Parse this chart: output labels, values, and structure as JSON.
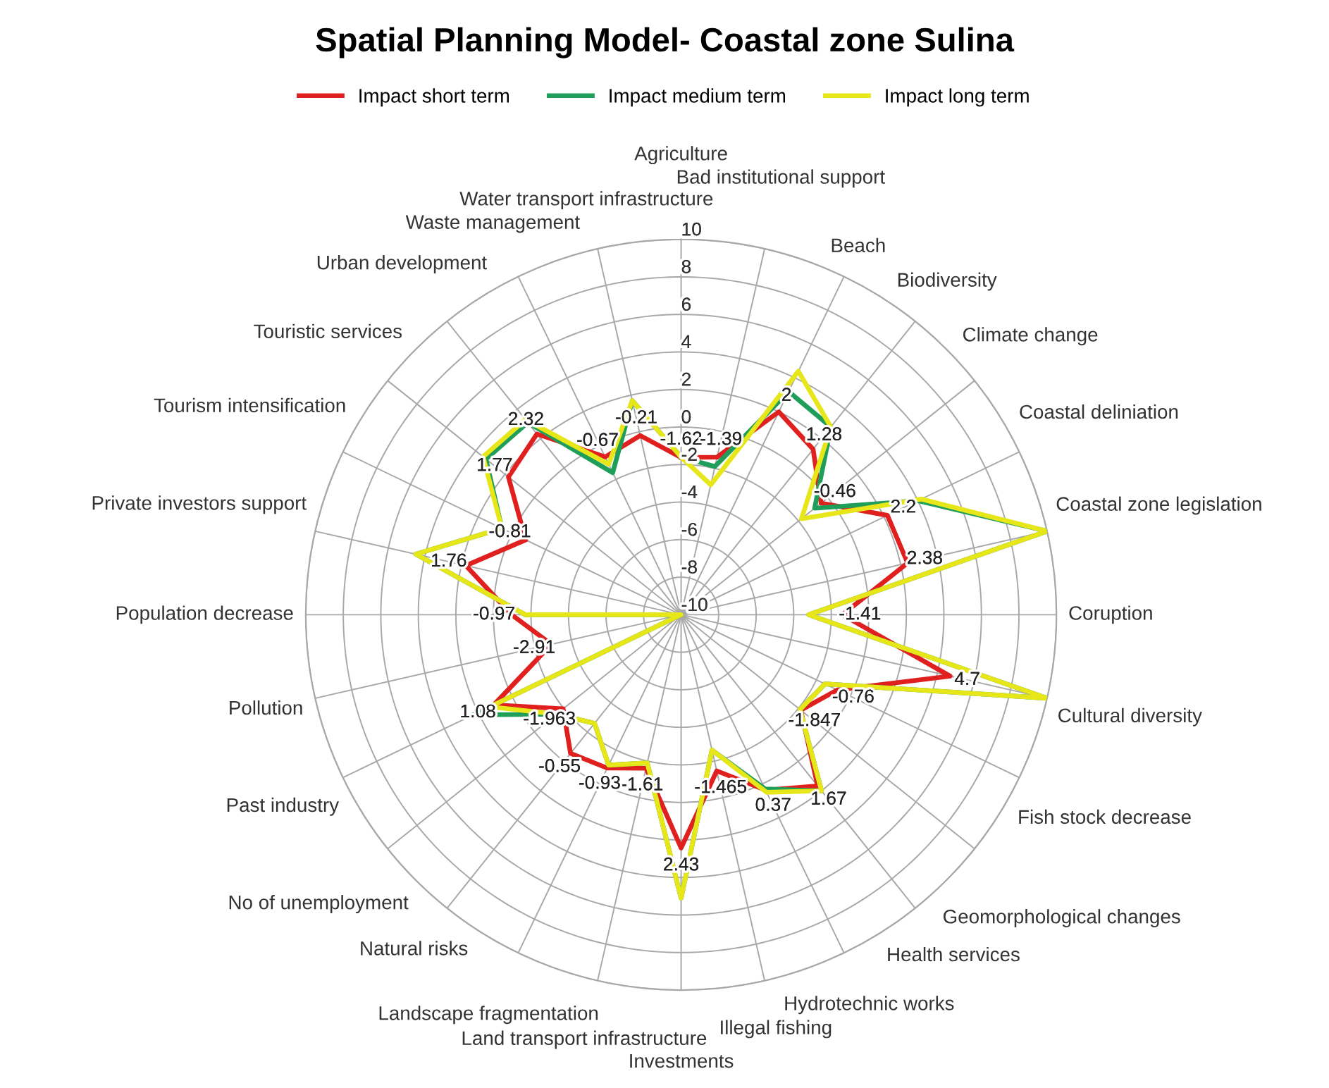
{
  "chart_data": {
    "type": "radar",
    "title": "Spatial Planning Model- Coastal zone Sulina",
    "categories": [
      "Agriculture",
      "Bad institutional support",
      "Beach",
      "Biodiversity",
      "Climate change",
      "Coastal deliniation",
      "Coastal zone legislation",
      "Coruption",
      "Cultural diversity",
      "Fish stock decrease",
      "Geomorphological changes",
      "Health services",
      "Hydrotechnic works",
      "Illegal fishing",
      "Investments",
      "Land transport infrastructure",
      "Landscape fragmentation",
      "Natural risks",
      "No of unemployment",
      "Past industry",
      "Pollution",
      "Population decrease",
      "Private investors support",
      "Tourism intensification",
      "Touristic services",
      "Urban development",
      "Waste management",
      "Water transport infrastructure"
    ],
    "series": [
      {
        "name": "Impact short term",
        "color": "#e0201e",
        "values": [
          -1.62,
          -1.39,
          2,
          1.28,
          -0.46,
          2.2,
          2.38,
          -1.41,
          4.7,
          -0.76,
          -1.847,
          1.67,
          0.37,
          -1.465,
          2.43,
          -1.61,
          -0.93,
          -0.55,
          -1.963,
          1.08,
          -2.91,
          -0.97,
          1.76,
          -0.81,
          1.77,
          2.32,
          -0.67,
          -0.21
        ],
        "value_labels": [
          "-1.62",
          "-1.39",
          "2",
          "1.28",
          "-0.46",
          "2.2",
          "2.38",
          "-1.41",
          "4.7",
          "-0.76",
          "-1.847",
          "1.67",
          "0.37",
          "-1.465",
          "2.43",
          "-1.61",
          "-0.93",
          "-0.55",
          "-1.963",
          "1.08",
          "-2.91",
          "-0.97",
          "1.76",
          "-0.81",
          "1.77",
          "2.32",
          "-0.67",
          "-0.21"
        ]
      },
      {
        "name": "Impact medium term",
        "color": "#1f9e5a",
        "values": [
          -1.6,
          -1.9,
          3.2,
          2.8,
          -0.9,
          4.0,
          10,
          -3.2,
          10,
          -1.5,
          -1.9,
          2.0,
          0.3,
          -2.6,
          5.1,
          -1.9,
          -1.1,
          -2.6,
          -1.5,
          2.3,
          -10,
          -1.7,
          4.5,
          0.6,
          3.3,
          3.1,
          -1.6,
          1.7
        ]
      },
      {
        "name": "Impact long term",
        "color": "#e6e619",
        "values": [
          -1.6,
          -2.9,
          4.4,
          2.8,
          -1.8,
          4.2,
          10,
          -3.2,
          10,
          -1.5,
          -1.9,
          2.0,
          0.5,
          -2.6,
          5.1,
          -1.9,
          -1.1,
          -2.6,
          -1.5,
          1.3,
          -10,
          -1.7,
          4.5,
          0.6,
          3.5,
          3.3,
          -1.1,
          1.7
        ]
      }
    ],
    "ylim": [
      -10,
      10
    ],
    "yticks": [
      -10,
      -8,
      -6,
      -4,
      -2,
      0,
      2,
      4,
      6,
      8,
      10
    ],
    "grid": true,
    "legend": "top",
    "marker": "none",
    "line_style": "solid"
  }
}
